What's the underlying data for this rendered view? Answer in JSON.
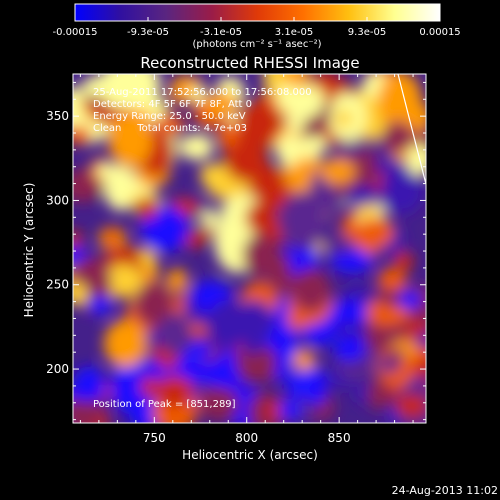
{
  "chart_data": {
    "type": "heatmap",
    "title": "Reconstructed RHESSI Image",
    "xlabel": "Heliocentric X (arcsec)",
    "ylabel": "Heliocentric Y (arcsec)",
    "xlim": [
      706,
      897
    ],
    "ylim": [
      168,
      375
    ],
    "x_ticks": [
      750,
      800,
      850
    ],
    "y_ticks": [
      200,
      250,
      300,
      350
    ],
    "colorbar": {
      "min": -0.00015,
      "max": 0.00015,
      "ticks": [
        "-0.00015",
        "-9.3e-05",
        "-3.1e-05",
        "3.1e-05",
        "9.3e-05",
        "0.00015"
      ],
      "unit": "(photons cm⁻² s⁻¹ asec⁻²)",
      "colors": [
        "#0000ff",
        "#3010a0",
        "#5a2580",
        "#9a1c48",
        "#e03a08",
        "#ff7000",
        "#ffbf10",
        "#ffff90",
        "#ffffff"
      ]
    },
    "annotations": [
      "25-Aug-2011 17:52:56.000 to 17:56:08.000",
      "Detectors: 4F 5F 6F 7F 8F, Att 0",
      "Energy Range: 25.0 - 50.0 keV",
      "Clean     Total counts: 4.7e+03"
    ],
    "peak_label": "Position of Peak = [851,289]",
    "limb_color": "#ffffff"
  },
  "footer": {
    "timestamp": "24-Aug-2013 11:02"
  }
}
